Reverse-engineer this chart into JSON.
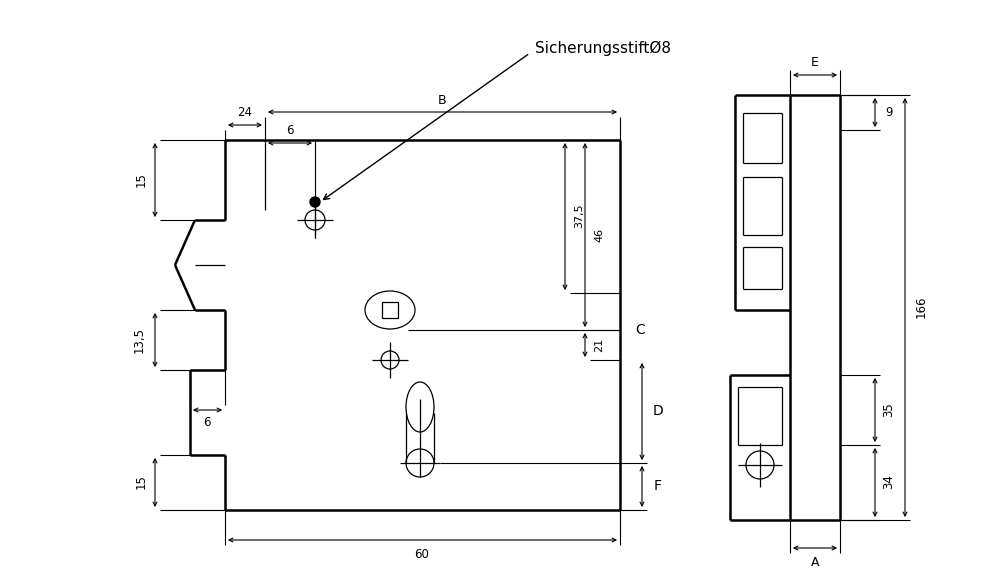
{
  "bg_color": "#ffffff",
  "line_color": "#000000",
  "lw_main": 1.8,
  "lw_thin": 0.9,
  "lw_dim": 0.8,
  "figsize": [
    10.0,
    5.77
  ],
  "dpi": 100,
  "annotation_label": "SicherungsstiftØ8",
  "dim_24": "24",
  "dim_6t": "6",
  "dim_15t": "15",
  "dim_375": "37,5",
  "dim_46": "46",
  "dim_C": "C",
  "dim_21": "21",
  "dim_6m": "6",
  "dim_135": "13,5",
  "dim_D": "D",
  "dim_15b": "15",
  "dim_F": "F",
  "dim_60": "60",
  "dim_B": "B",
  "dim_166": "166",
  "dim_E": "E",
  "dim_9": "9",
  "dim_35": "35",
  "dim_34": "34",
  "dim_A": "A"
}
